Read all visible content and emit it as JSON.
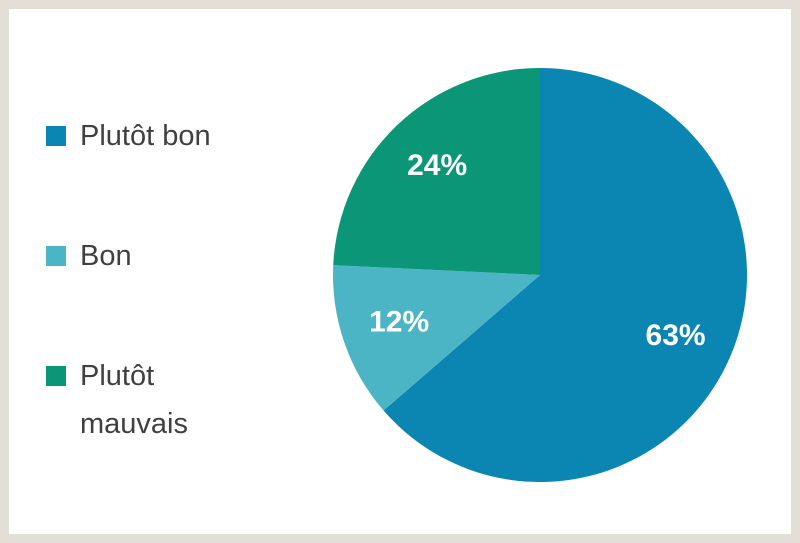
{
  "chart_data": {
    "type": "pie",
    "categories": [
      "Plutôt bon",
      "Bon",
      "Plutôt mauvais"
    ],
    "values": [
      63,
      12,
      24
    ],
    "value_labels": [
      "63%",
      "12%",
      "24%"
    ],
    "colors": [
      "#0b86b2",
      "#4bb5c6",
      "#0a9677"
    ],
    "legend": "left"
  }
}
